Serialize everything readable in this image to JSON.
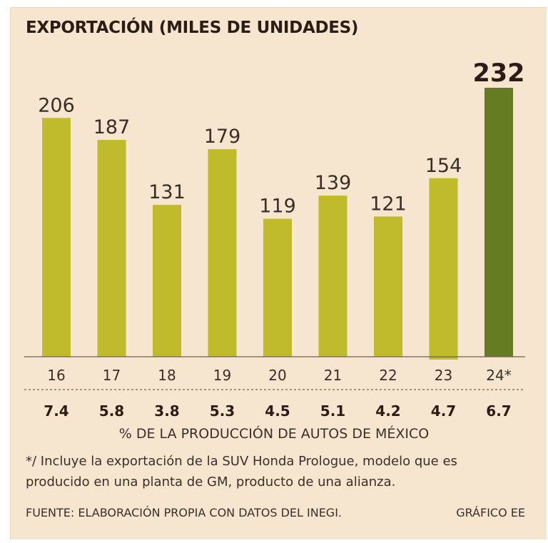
{
  "chart_data": {
    "type": "bar",
    "title": "EXPORTACIÓN (MILES DE UNIDADES)",
    "categories": [
      "16",
      "17",
      "18",
      "19",
      "20",
      "21",
      "22",
      "23",
      "24*"
    ],
    "values": [
      206,
      187,
      131,
      179,
      119,
      139,
      121,
      154,
      232
    ],
    "value_labels": [
      "206",
      "187",
      "131",
      "179",
      "119",
      "139",
      "121",
      "154",
      "232"
    ],
    "share_of_production": [
      "7.4",
      "5.8",
      "3.8",
      "5.3",
      "4.5",
      "5.1",
      "4.2",
      "4.7",
      "6.7"
    ],
    "share_label": "% DE LA PRODUCCIÓN DE AUTOS DE MÉXICO",
    "ylim": [
      0,
      232
    ],
    "highlight_index": 8,
    "colors": {
      "bar": "#bfbb2a",
      "highlight": "#667c23",
      "axis": "#6e6258",
      "text": "#3a2e29"
    }
  },
  "footnote": "*/ Incluye la exportación de la SUV Honda Prologue, modelo que es producido en una planta de GM, producto de una alianza.",
  "source": "FUENTE: ELABORACIÓN PROPIA CON DATOS DEL INEGI.",
  "credit": "GRÁFICO EE"
}
